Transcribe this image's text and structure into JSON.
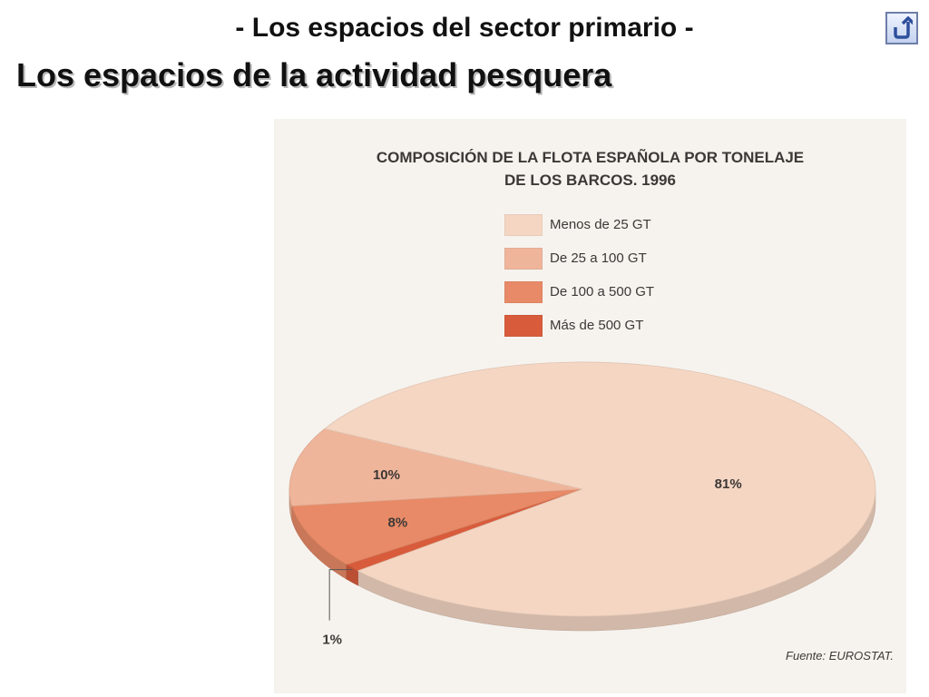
{
  "header": {
    "subtitle": "- Los espacios del sector primario -",
    "title": "Los espacios de la actividad pesquera",
    "back_button": "back-arrow-icon"
  },
  "chart_data": {
    "type": "pie",
    "title_lines": [
      "COMPOSICIÓN DE LA FLOTA ESPAÑOLA POR TONELAJE",
      "DE LOS BARCOS. 1996"
    ],
    "slices": [
      {
        "label": "Menos de 25 GT",
        "value": 81,
        "display": "81%",
        "color": "#f4d6c3"
      },
      {
        "label": "De 25 a 100 GT",
        "value": 10,
        "display": "10%",
        "color": "#efb59a"
      },
      {
        "label": "De 100 a 500 GT",
        "value": 8,
        "display": "8%",
        "color": "#e88a67"
      },
      {
        "label": "Más de 500 GT",
        "value": 1,
        "display": "1%",
        "color": "#d85c3c"
      }
    ],
    "legend_position": "top-center",
    "source": "Fuente: EUROSTAT."
  }
}
